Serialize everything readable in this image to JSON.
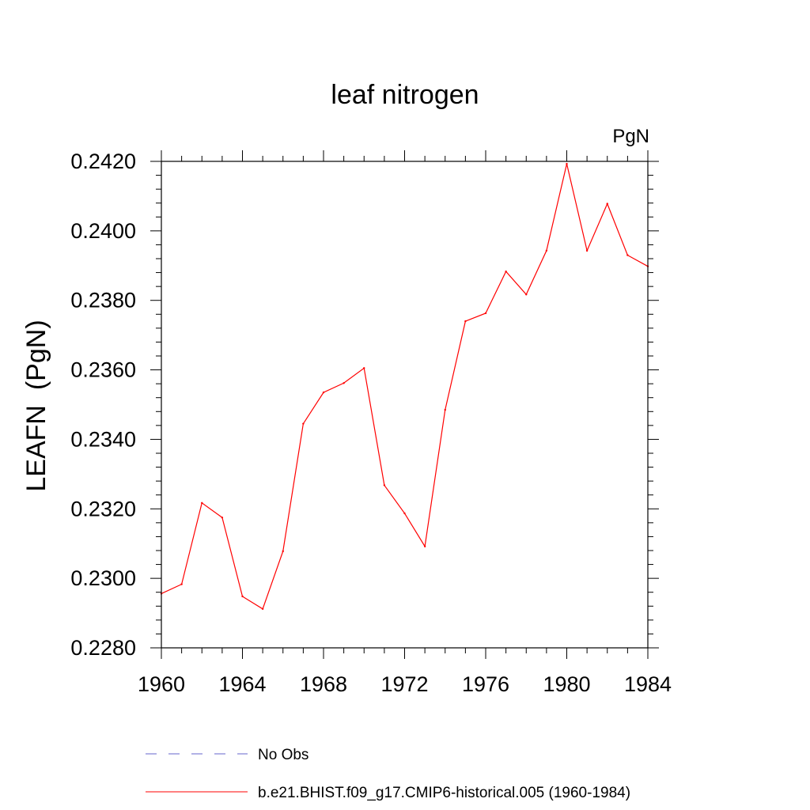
{
  "chart_data": {
    "type": "line",
    "title": "leaf nitrogen",
    "units_label": "PgN",
    "ylabel": "LEAFN  (PgN)",
    "xlabel": "",
    "xlim": [
      1960,
      1984
    ],
    "ylim": [
      0.228,
      0.242
    ],
    "x_ticks": [
      "1960",
      "1964",
      "1968",
      "1972",
      "1976",
      "1980",
      "1984"
    ],
    "y_ticks": [
      "0.2280",
      "0.2300",
      "0.2320",
      "0.2340",
      "0.2360",
      "0.2380",
      "0.2400",
      "0.2420"
    ],
    "x": [
      1960,
      1961,
      1962,
      1963,
      1964,
      1965,
      1966,
      1967,
      1968,
      1969,
      1970,
      1971,
      1972,
      1973,
      1974,
      1975,
      1976,
      1977,
      1978,
      1979,
      1980,
      1981,
      1982,
      1983,
      1984
    ],
    "series": [
      {
        "name": "b.e21.BHIST.f09_g17.CMIP6-historical.005 (1960-1984)",
        "color": "#ff0000",
        "values": [
          0.22956,
          0.22983,
          0.23217,
          0.23175,
          0.22948,
          0.22912,
          0.23078,
          0.23445,
          0.23535,
          0.23562,
          0.23605,
          0.23268,
          0.23187,
          0.23092,
          0.23485,
          0.2374,
          0.23763,
          0.23883,
          0.23817,
          0.23943,
          0.24193,
          0.23943,
          0.24078,
          0.2393,
          0.23898
        ]
      }
    ],
    "legend": [
      {
        "label": "No Obs",
        "style": "dashed",
        "color": "#6666cc"
      },
      {
        "label": "b.e21.BHIST.f09_g17.CMIP6-historical.005 (1960-1984)",
        "style": "solid",
        "color": "#ff0000"
      }
    ],
    "legend_position": "bottom",
    "grid": false
  }
}
